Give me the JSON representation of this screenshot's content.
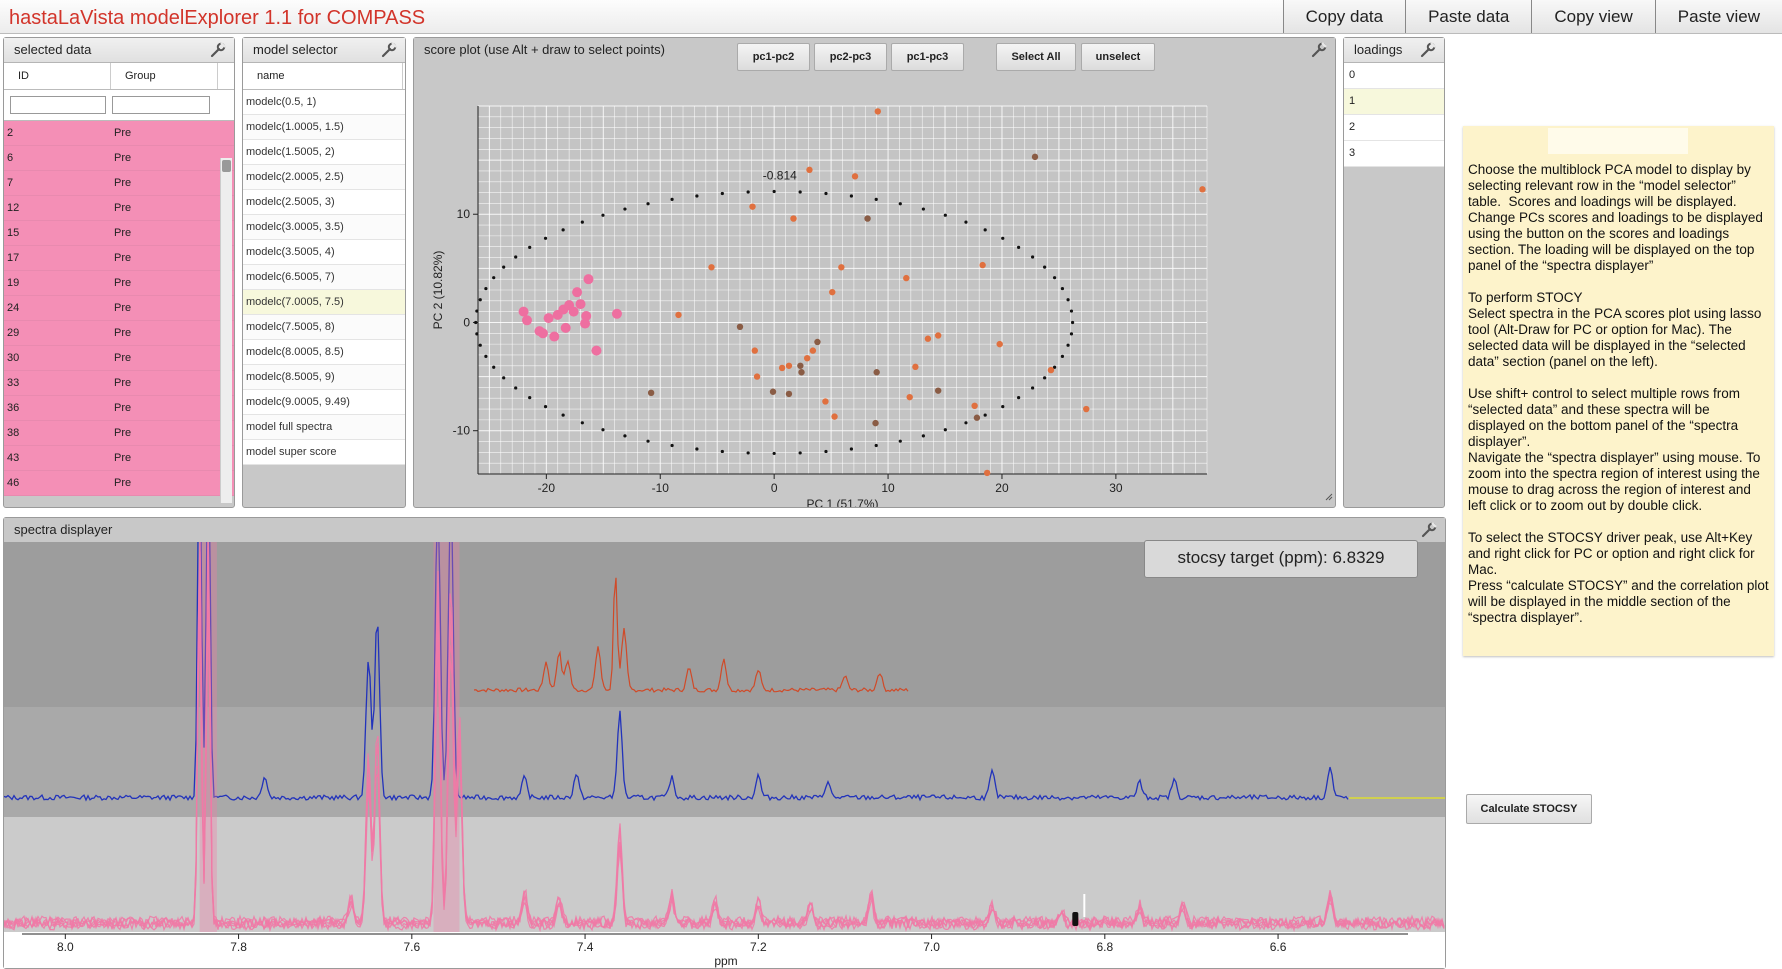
{
  "app": {
    "title": "hastaLaVista modelExplorer 1.1 for COMPASS"
  },
  "top_buttons": [
    "Copy data",
    "Paste data",
    "Copy view",
    "Paste view"
  ],
  "selected_data": {
    "title": "selected data",
    "columns": [
      "ID",
      "Group"
    ],
    "rows": [
      {
        "id": "2",
        "group": "Pre"
      },
      {
        "id": "6",
        "group": "Pre"
      },
      {
        "id": "7",
        "group": "Pre"
      },
      {
        "id": "12",
        "group": "Pre"
      },
      {
        "id": "15",
        "group": "Pre"
      },
      {
        "id": "17",
        "group": "Pre"
      },
      {
        "id": "19",
        "group": "Pre"
      },
      {
        "id": "24",
        "group": "Pre"
      },
      {
        "id": "29",
        "group": "Pre"
      },
      {
        "id": "30",
        "group": "Pre"
      },
      {
        "id": "33",
        "group": "Pre"
      },
      {
        "id": "36",
        "group": "Pre"
      },
      {
        "id": "38",
        "group": "Pre"
      },
      {
        "id": "43",
        "group": "Pre"
      },
      {
        "id": "46",
        "group": "Pre"
      }
    ]
  },
  "model_selector": {
    "title": "model selector",
    "column": "name",
    "selected_index": 7,
    "rows": [
      "modelc(0.5, 1)",
      "modelc(1.0005, 1.5)",
      "modelc(1.5005, 2)",
      "modelc(2.0005, 2.5)",
      "modelc(2.5005, 3)",
      "modelc(3.0005, 3.5)",
      "modelc(3.5005, 4)",
      "modelc(6.5005, 7)",
      "modelc(7.0005, 7.5)",
      "modelc(7.5005, 8)",
      "modelc(8.0005, 8.5)",
      "modelc(8.5005, 9)",
      "modelc(9.0005, 9.49)",
      "model full spectra",
      "model super score"
    ]
  },
  "score_plot": {
    "title": "score plot (use Alt + draw to select points)",
    "buttons": [
      "pc1-pc2",
      "pc2-pc3",
      "pc1-pc3",
      "Select All",
      "unselect"
    ],
    "annotation": "-0.814"
  },
  "loadings": {
    "title": "loadings",
    "rows": [
      "0",
      "1",
      "2",
      "3"
    ],
    "selected_index": 1
  },
  "spectra": {
    "title": "spectra displayer",
    "stocsy_label": "stocsy target (ppm): 6.8329"
  },
  "help": {
    "text": "Choose the multiblock PCA model to display by selecting relevant row in the “model selector” table.  Scores and loadings will be displayed. Change PCs scores and loadings to be displayed using the button on the scores and loadings section. The loading will be displayed on the top panel of the “spectra displayer”\n\nTo perform STOCY\nSelect spectra in the PCA scores plot using lasso tool (Alt-Draw for PC or option for Mac). The selected data will be displayed in the “selected data” section (panel on the left).\n\nUse shift+ control to select multiple rows from “selected data” and these spectra will be displayed on the bottom panel of the “spectra displayer”.\nNavigate the “spectra displayer” using mouse. To zoom into the spectra region of interest using the mouse to drag across the region of interest and left click or to zoom out by double click.\n\nTo select the STOCSY driver peak, use Alt+Key and right click for PC or option and right click for Mac.\nPress “calculate STOCSY” and the correlation plot will be displayed in the middle section of the “spectra displayer”."
  },
  "calc_button": "Calculate STOCSY",
  "chart_data": [
    {
      "type": "scatter",
      "xlabel": "PC 1 (51.7%)",
      "ylabel": "PC 2 (10.82%)",
      "xlim": [
        -26,
        38
      ],
      "ylim": [
        -14,
        20
      ],
      "x_ticks": [
        -20,
        -10,
        0,
        10,
        20,
        30
      ],
      "y_ticks": [
        -10,
        0,
        10
      ],
      "grid": true,
      "colors": {
        "selected": "#ee6fa0",
        "orange": "#e0703f",
        "brown": "#8a5c45",
        "ellipse": "#111111"
      },
      "ellipse": {
        "cx": 0.0,
        "cy": 0.0,
        "rx": 26.2,
        "ry": 12.1
      },
      "selected_points": [
        [
          -22,
          1
        ],
        [
          -21.7,
          0.2
        ],
        [
          -20.6,
          -0.8
        ],
        [
          -20.3,
          -1.0
        ],
        [
          -19.8,
          0.4
        ],
        [
          -19.3,
          -1.3
        ],
        [
          -19.0,
          0.7
        ],
        [
          -18.5,
          1.2
        ],
        [
          -18.3,
          -0.5
        ],
        [
          -18.0,
          1.6
        ],
        [
          -17.6,
          1.0
        ],
        [
          -17.3,
          2.8
        ],
        [
          -17.0,
          1.7
        ],
        [
          -16.6,
          -0.1
        ],
        [
          -16.5,
          0.6
        ],
        [
          -16.3,
          4.0
        ],
        [
          -15.6,
          -2.6
        ],
        [
          -13.8,
          0.8
        ]
      ],
      "orange_points": [
        [
          -8.4,
          0.7
        ],
        [
          -5.5,
          5.1
        ],
        [
          -1.9,
          10.7
        ],
        [
          -1.7,
          -2.6
        ],
        [
          -1.5,
          -5.0
        ],
        [
          0.7,
          -4.2
        ],
        [
          1.3,
          -4.0
        ],
        [
          1.7,
          9.6
        ],
        [
          2.9,
          -3.3
        ],
        [
          3.1,
          14.1
        ],
        [
          3.4,
          -2.6
        ],
        [
          4.5,
          -7.3
        ],
        [
          5.1,
          2.8
        ],
        [
          5.3,
          -8.7
        ],
        [
          5.9,
          5.1
        ],
        [
          7.1,
          13.5
        ],
        [
          11.6,
          4.1
        ],
        [
          11.9,
          -6.9
        ],
        [
          12.4,
          -4.1
        ],
        [
          13.5,
          -1.5
        ],
        [
          14.4,
          -1.2
        ],
        [
          17.6,
          -7.7
        ],
        [
          18.3,
          5.3
        ],
        [
          19.8,
          -2.0
        ],
        [
          24.3,
          -4.4
        ],
        [
          27.4,
          -8.0
        ],
        [
          37.6,
          12.3
        ]
      ],
      "brown_points": [
        [
          -10.8,
          -6.5
        ],
        [
          -3.0,
          -0.4
        ],
        [
          -0.1,
          -6.4
        ],
        [
          2.3,
          -4.0
        ],
        [
          2.4,
          -4.6
        ],
        [
          1.3,
          -6.6
        ],
        [
          3.8,
          -1.8
        ],
        [
          8.2,
          9.6
        ],
        [
          8.9,
          -9.3
        ],
        [
          9.0,
          -4.6
        ],
        [
          14.4,
          -6.3
        ],
        [
          17.8,
          -8.8
        ],
        [
          22.9,
          15.3
        ]
      ],
      "outlier_points": [
        [
          9.1,
          19.5
        ],
        [
          18.7,
          -13.9
        ]
      ]
    },
    {
      "type": "line",
      "xlabel": "ppm",
      "xlim": [
        8.05,
        6.45
      ],
      "x_ticks": [
        8.0,
        7.8,
        7.6,
        7.4,
        7.2,
        7.0,
        6.8,
        6.6
      ],
      "colors": {
        "loading": "#d04a28",
        "correlation": "#2233bb",
        "spectra": "#f07aa6",
        "target": "#ffffff"
      },
      "stocsy_target_ppm": 6.8329,
      "peaks": [
        7.845,
        7.835,
        7.64,
        7.565,
        7.555,
        7.36,
        7.07,
        6.85,
        6.76,
        6.71,
        6.53
      ]
    }
  ]
}
